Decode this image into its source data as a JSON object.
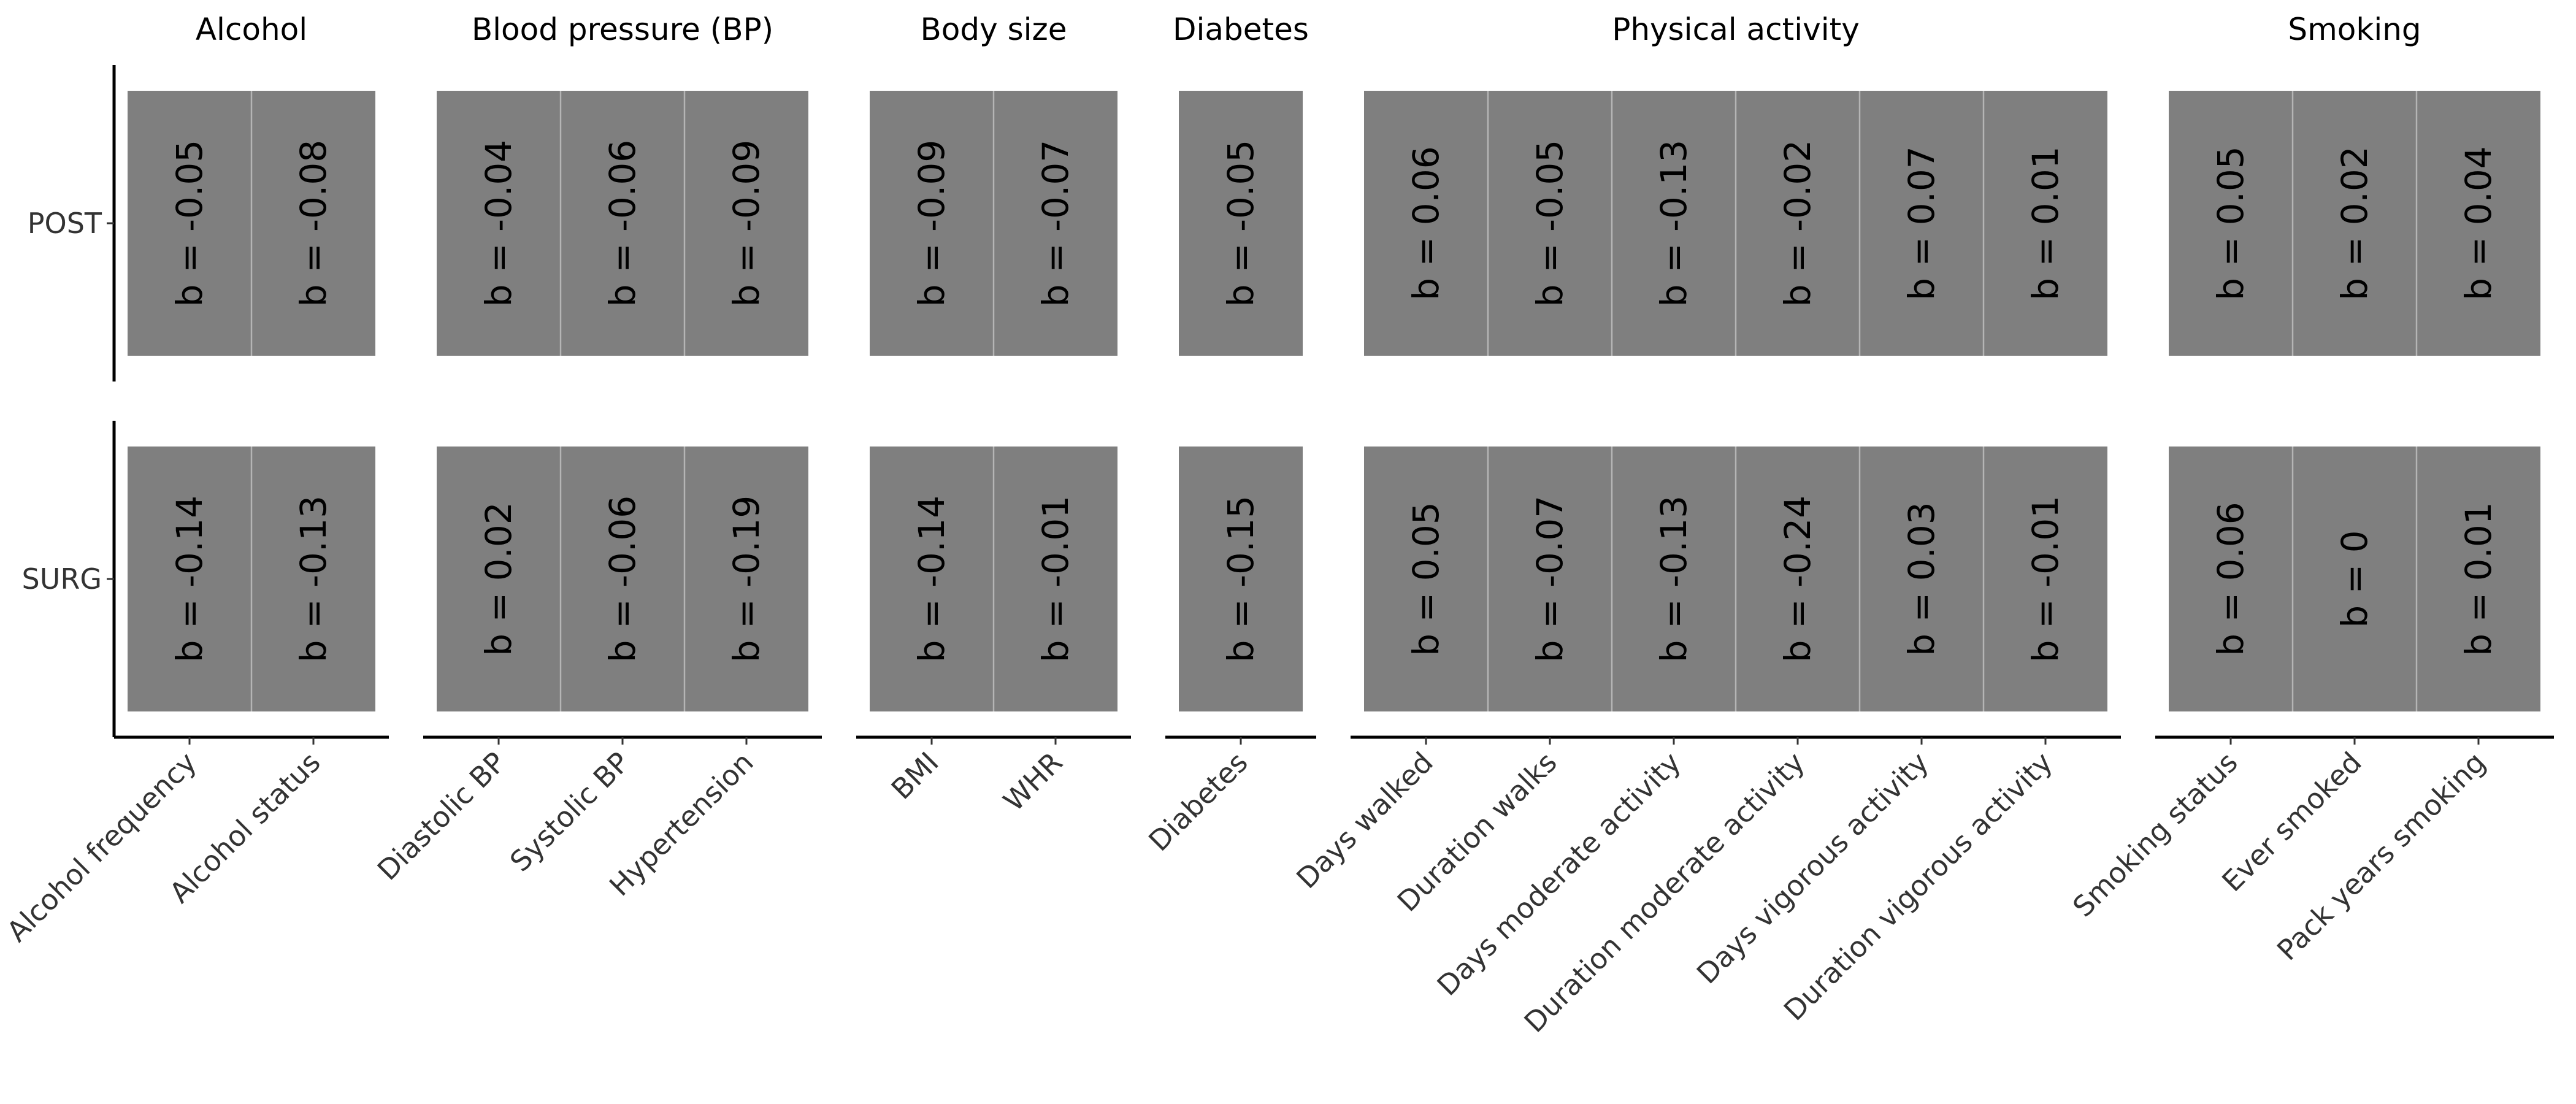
{
  "chart_data": {
    "type": "heatmap",
    "title": "",
    "xlabel": "",
    "ylabel": "",
    "grid": false,
    "legend": "none",
    "cell_color": "#7f7f7f",
    "label_prefix": "b = ",
    "rows": [
      "POST",
      "SURG"
    ],
    "groups": [
      {
        "name": "Alcohol",
        "columns": [
          "Alcohol frequency",
          "Alcohol status"
        ],
        "values": {
          "POST": [
            -0.05,
            -0.08
          ],
          "SURG": [
            -0.14,
            -0.13
          ]
        }
      },
      {
        "name": "Blood pressure (BP)",
        "columns": [
          "Diastolic BP",
          "Systolic BP",
          "Hypertension"
        ],
        "values": {
          "POST": [
            -0.04,
            -0.06,
            -0.09
          ],
          "SURG": [
            0.02,
            -0.06,
            -0.19
          ]
        }
      },
      {
        "name": "Body size",
        "columns": [
          "BMI",
          "WHR"
        ],
        "values": {
          "POST": [
            -0.09,
            -0.07
          ],
          "SURG": [
            -0.14,
            -0.01
          ]
        }
      },
      {
        "name": "Diabetes",
        "columns": [
          "Diabetes"
        ],
        "values": {
          "POST": [
            -0.05
          ],
          "SURG": [
            -0.15
          ]
        }
      },
      {
        "name": "Physical activity",
        "columns": [
          "Days walked",
          "Duration walks",
          "Days moderate activity",
          "Duration moderate activity",
          "Days vigorous activity",
          "Duration vigorous activity"
        ],
        "values": {
          "POST": [
            0.06,
            -0.05,
            -0.13,
            -0.02,
            0.07,
            0.01
          ],
          "SURG": [
            0.05,
            -0.07,
            -0.13,
            -0.24,
            0.03,
            -0.01
          ]
        }
      },
      {
        "name": "Smoking",
        "columns": [
          "Smoking status",
          "Ever smoked",
          "Pack years smoking"
        ],
        "values": {
          "POST": [
            0.05,
            0.02,
            0.04
          ],
          "SURG": [
            0.06,
            0,
            0.01
          ]
        }
      }
    ]
  }
}
